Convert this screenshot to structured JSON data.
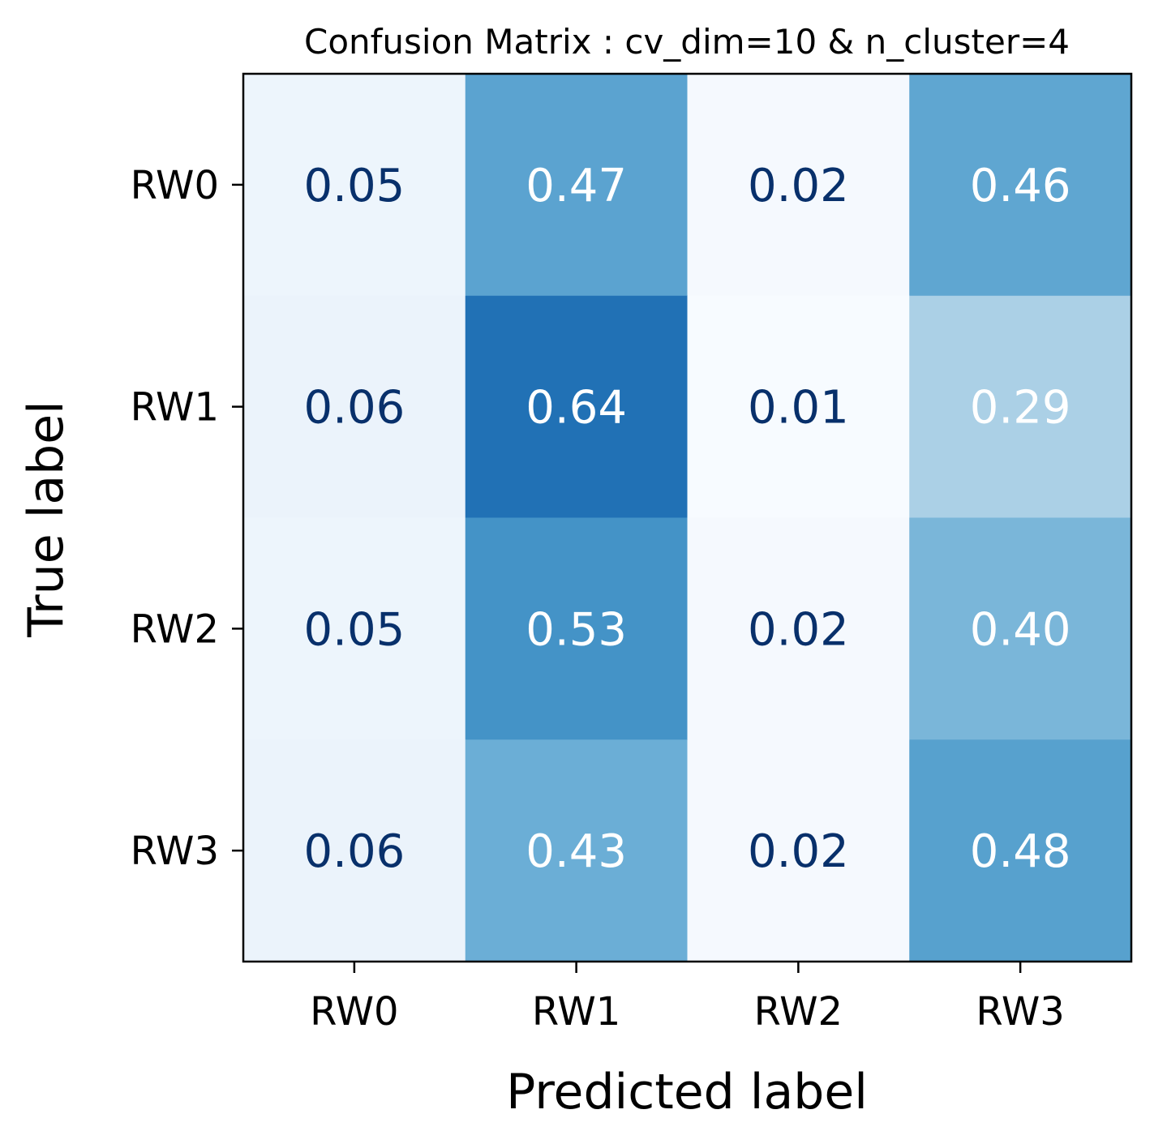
{
  "chart_data": {
    "type": "heatmap",
    "title": "Confusion Matrix : cv_dim=10 & n_cluster=4",
    "xlabel": "Predicted label",
    "ylabel": "True label",
    "x_categories": [
      "RW0",
      "RW1",
      "RW2",
      "RW3"
    ],
    "y_categories": [
      "RW0",
      "RW1",
      "RW2",
      "RW3"
    ],
    "values": [
      [
        0.05,
        0.47,
        0.02,
        0.46
      ],
      [
        0.06,
        0.64,
        0.01,
        0.29
      ],
      [
        0.05,
        0.53,
        0.02,
        0.4
      ],
      [
        0.06,
        0.43,
        0.02,
        0.48
      ]
    ],
    "value_format": "0.00",
    "colormap": "Blues",
    "colorbar": false,
    "colors": {
      "low": "#f7fbff",
      "high": "#08306b",
      "text_dark": "#08306b",
      "text_light": "#ffffff"
    }
  }
}
